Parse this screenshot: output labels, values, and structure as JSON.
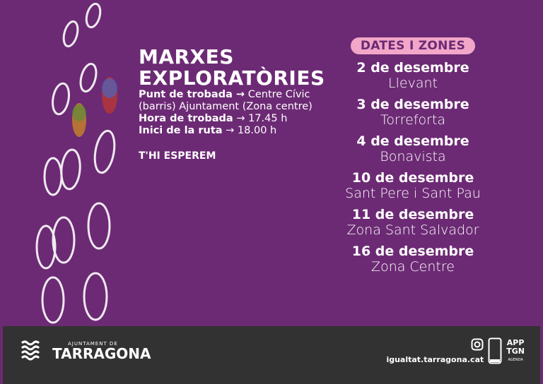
{
  "title": {
    "line1": "MARXES",
    "line2": "EXPLORATÒRIES"
  },
  "details": [
    {
      "label": "Punt de trobada →",
      "value": " Centre Cívic"
    },
    {
      "label": "",
      "value": "(barris) Ajuntament (Zona centre)"
    },
    {
      "label": "Hora de trobada",
      "value": " → 17.45 h"
    },
    {
      "label": "Inici de la ruta",
      "value": " → 18.00 h"
    }
  ],
  "closing": "T'HI ESPEREM",
  "dates_header": "DATES I ZONES",
  "dates": [
    {
      "date": "2 de desembre",
      "zone": "Llevant"
    },
    {
      "date": "3 de desembre",
      "zone": "Torreforta"
    },
    {
      "date": "4 de desembre",
      "zone": "Bonavista"
    },
    {
      "date": "10 de desembre",
      "zone": "Sant Pere i Sant Pau"
    },
    {
      "date": "11 de desembre",
      "zone": "Zona Sant Salvador"
    },
    {
      "date": "16 de desembre",
      "zone": "Zona Centre"
    }
  ],
  "footer": {
    "logo_small": "AJUNTAMENT DE",
    "logo_big": "TARRAGONA",
    "url": "igualtat.tarragona.cat",
    "app_line1": "APP",
    "app_line2": "TGN",
    "app_line3": "AGENDA"
  },
  "colors": {
    "background": "#6c2a74",
    "pill": "#f2a7c9",
    "footer": "#333232"
  },
  "icons": [
    "footprints-illustration",
    "tarragona-waves-logo",
    "instagram-icon",
    "smartphone-icon"
  ]
}
